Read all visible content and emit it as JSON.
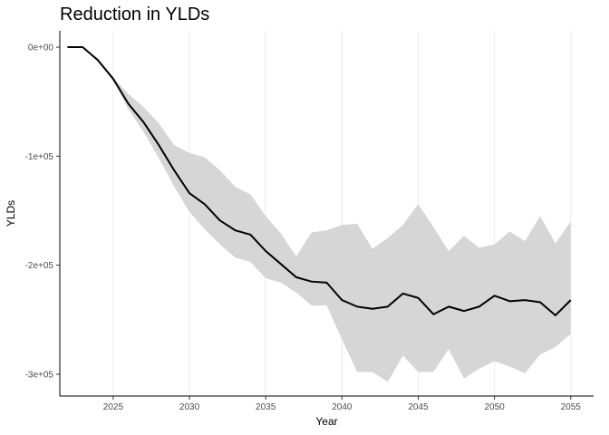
{
  "chart_data": {
    "type": "line",
    "title": "Reduction in YLDs",
    "xlabel": "Year",
    "ylabel": "YLDs",
    "xlim": [
      2021.5,
      2056.5
    ],
    "ylim": [
      -320000,
      15000
    ],
    "x_ticks": [
      2025,
      2030,
      2035,
      2040,
      2045,
      2050,
      2055
    ],
    "x_tick_labels": [
      "2025",
      "2030",
      "2035",
      "2040",
      "2045",
      "2050",
      "2055"
    ],
    "y_ticks": [
      0,
      -100000,
      -200000,
      -300000
    ],
    "y_tick_labels": [
      "0e+00",
      "-1e+05",
      "-2e+05",
      "-3e+05"
    ],
    "grid": "vertical-major",
    "legend": "none",
    "colors": {
      "line": "#000000",
      "band": "#d6d6d6",
      "grid": "#ebebeb",
      "axis": "#000000"
    },
    "series": [
      {
        "x": [
          2022,
          2023,
          2024,
          2025,
          2026,
          2027,
          2028,
          2029,
          2030,
          2031,
          2032,
          2033,
          2034,
          2035,
          2036,
          2037,
          2038,
          2039,
          2040,
          2041,
          2042,
          2043,
          2044,
          2045,
          2046,
          2047,
          2048,
          2049,
          2050,
          2051,
          2052,
          2053,
          2054,
          2055
        ],
        "mean": [
          0,
          0,
          -12000,
          -29000,
          -52000,
          -69000,
          -90000,
          -113000,
          -134000,
          -144000,
          -159000,
          -168000,
          -172000,
          -187000,
          -199000,
          -211000,
          -215000,
          -216000,
          -232000,
          -238000,
          -240000,
          -238000,
          -226000,
          -230000,
          -245000,
          -238000,
          -242000,
          -238000,
          -228000,
          -233000,
          -232000,
          -234000,
          -246000,
          -232000
        ],
        "lower": [
          0,
          0,
          -12000,
          -31000,
          -57000,
          -78000,
          -102000,
          -128000,
          -151000,
          -167000,
          -181000,
          -193000,
          -197000,
          -212000,
          -216000,
          -225000,
          -237000,
          -237000,
          -268000,
          -298000,
          -298000,
          -307000,
          -283000,
          -298000,
          -298000,
          -277000,
          -304000,
          -295000,
          -288000,
          -293000,
          -299000,
          -282000,
          -275000,
          -263000
        ],
        "upper": [
          0,
          0,
          -10000,
          -28000,
          -43000,
          -55000,
          -70000,
          -90000,
          -97000,
          -101000,
          -113000,
          -128000,
          -135000,
          -155000,
          -171000,
          -192000,
          -170000,
          -168000,
          -163000,
          -162000,
          -185000,
          -175000,
          -163000,
          -144000,
          -165000,
          -187000,
          -173000,
          -184000,
          -181000,
          -169000,
          -178000,
          -155000,
          -180000,
          -160000
        ]
      }
    ]
  }
}
